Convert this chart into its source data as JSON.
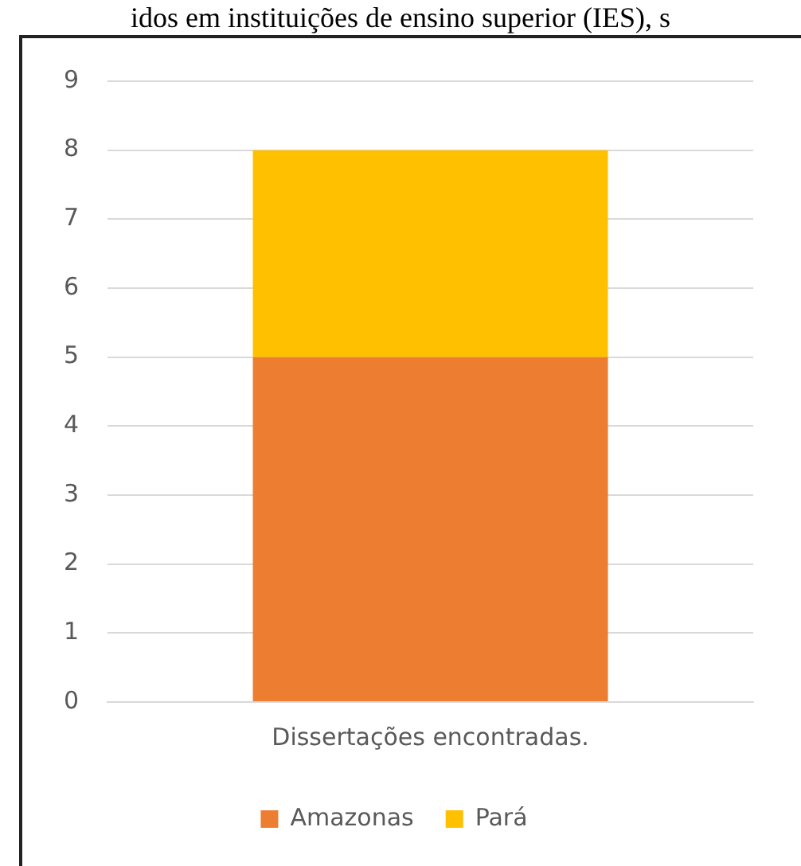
{
  "chart_data": {
    "type": "bar",
    "title": "idos em instituições de ensino superior (IES), s",
    "categories": [
      "Dissertações encontradas."
    ],
    "stacked": true,
    "series": [
      {
        "name": "Amazonas",
        "color": "#ed7d31",
        "values": [
          5
        ]
      },
      {
        "name": "Pará",
        "color": "#ffc000",
        "values": [
          3
        ]
      }
    ],
    "ylim": [
      0,
      9
    ],
    "yticks": [
      0,
      1,
      2,
      3,
      4,
      5,
      6,
      7,
      8,
      9
    ],
    "grid": "y",
    "legend": "bottom"
  }
}
